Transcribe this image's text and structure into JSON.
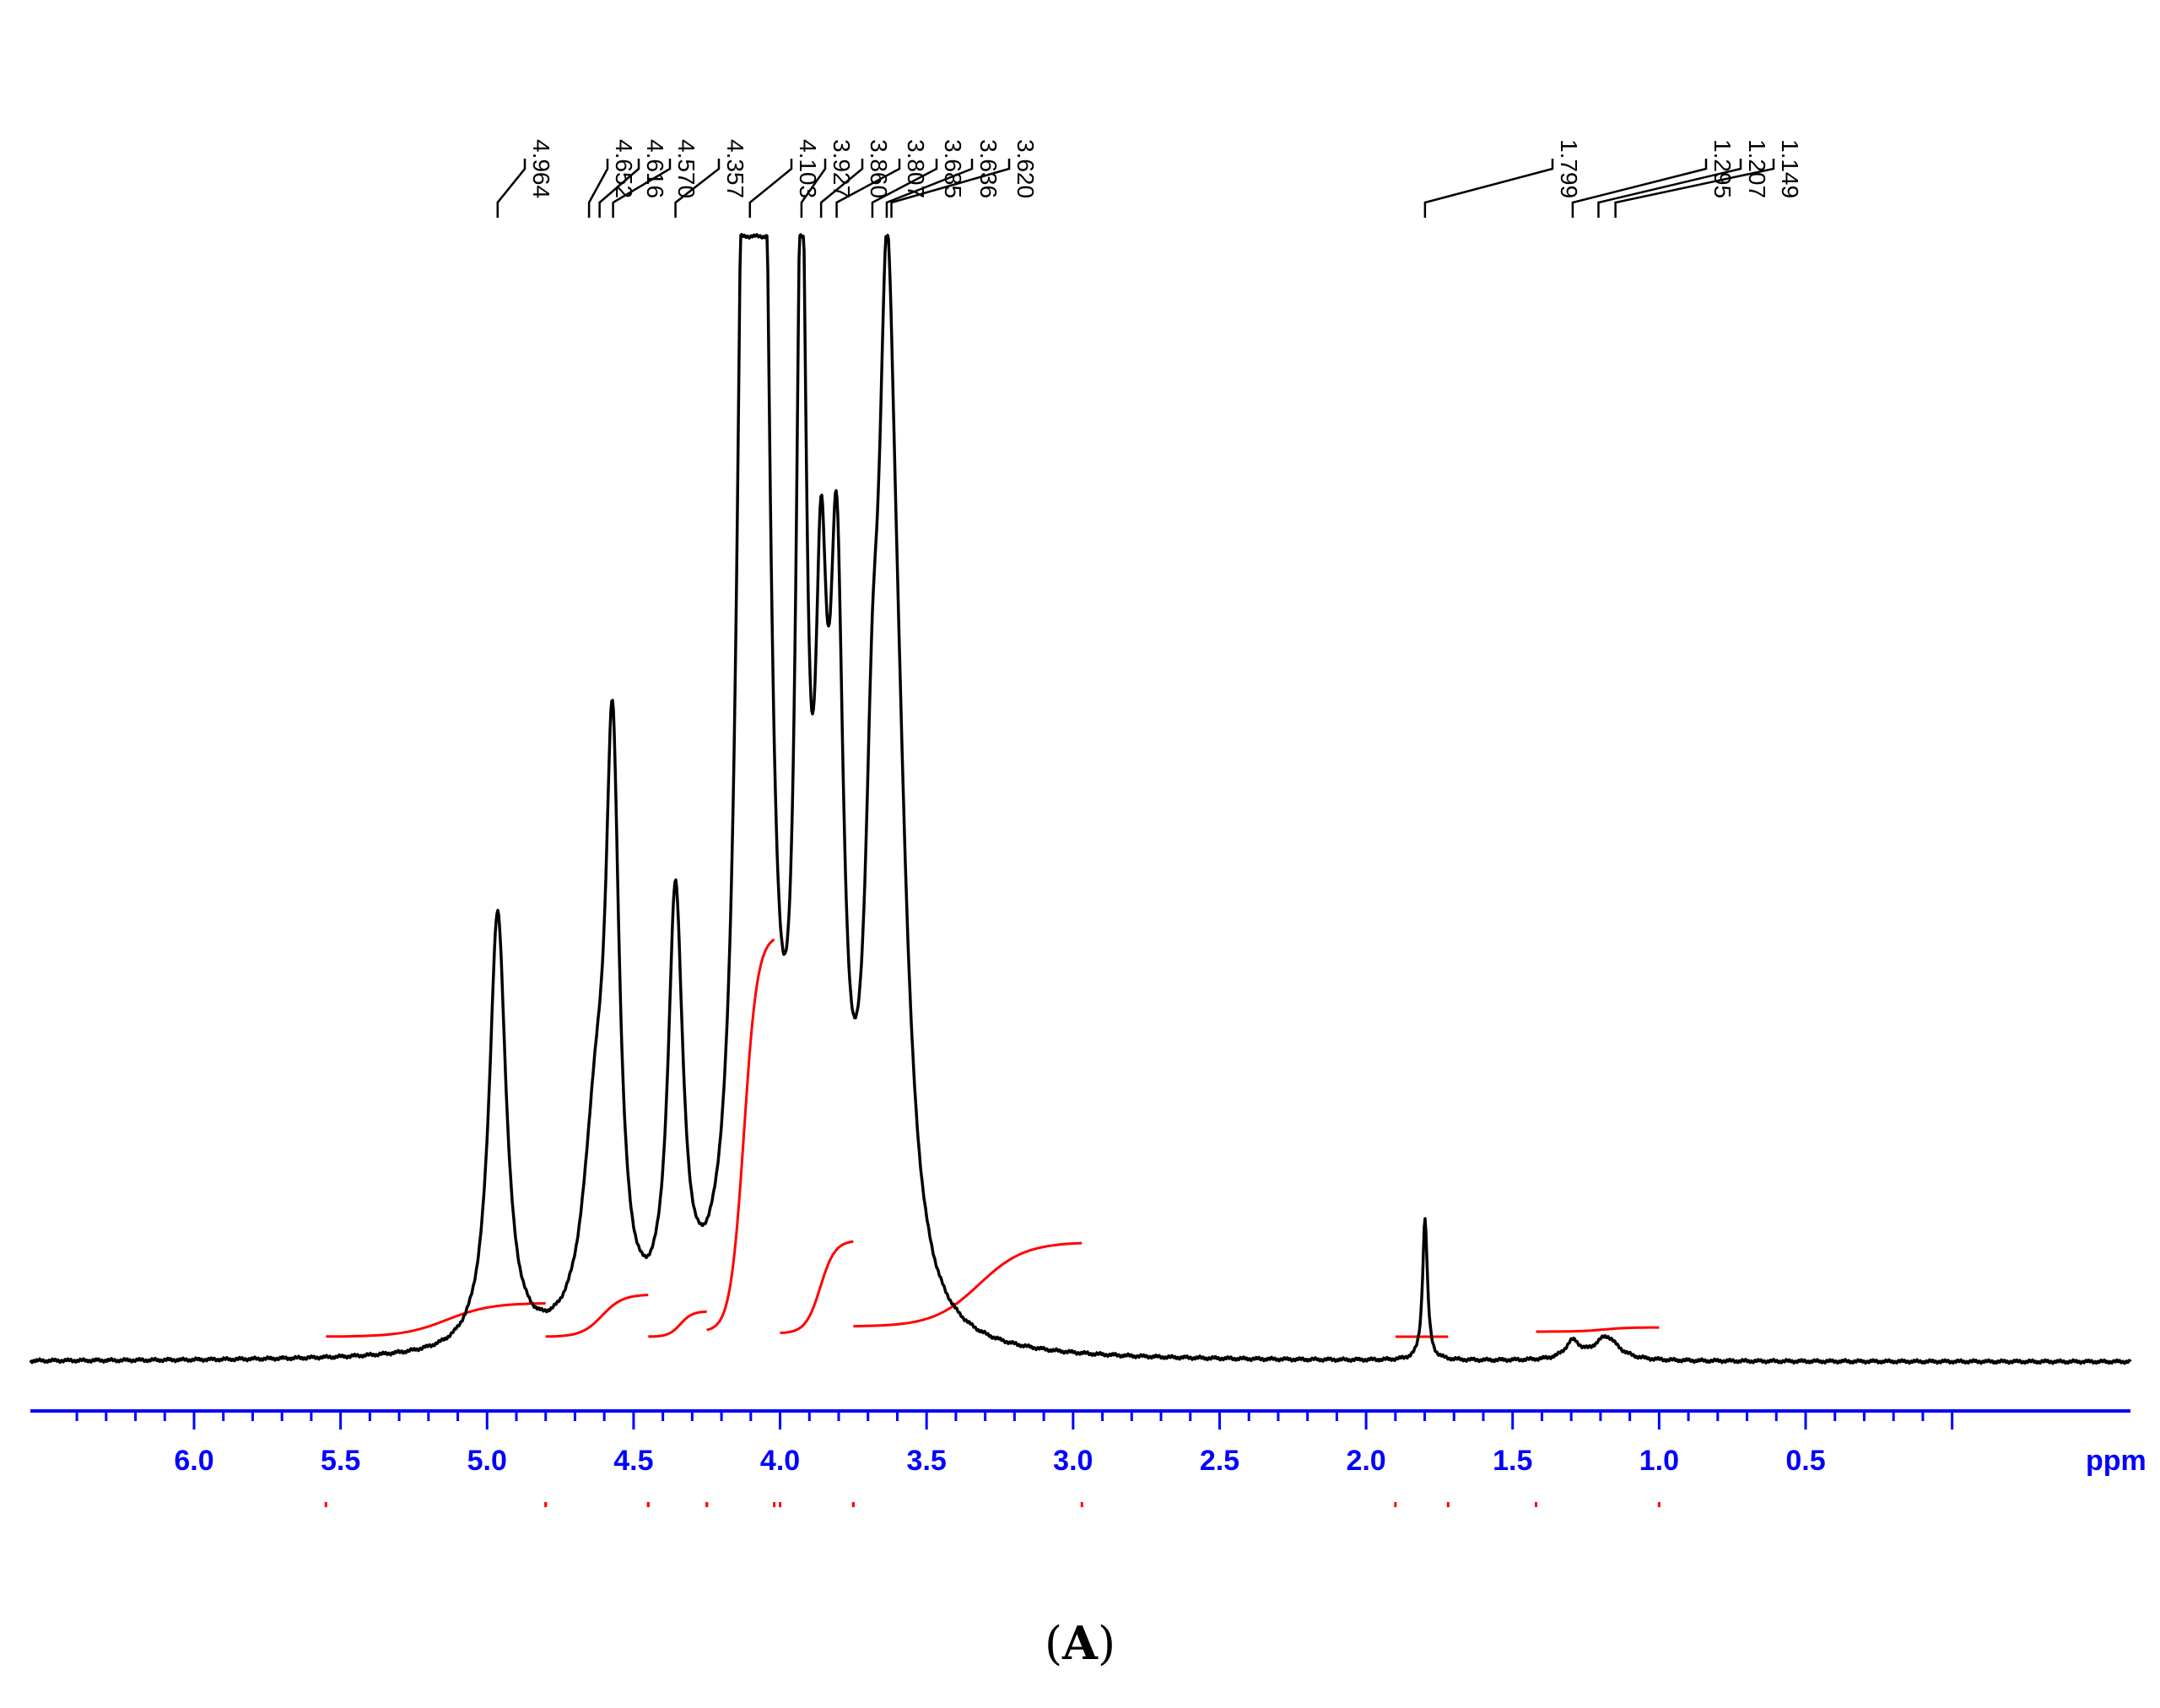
{
  "chart_data": {
    "type": "line",
    "title": "",
    "xlabel": "ppm",
    "ylabel": "",
    "x_reversed": true,
    "xlim": [
      6.5,
      0.0
    ],
    "x_ticks": [
      6.0,
      5.5,
      5.0,
      4.5,
      4.0,
      3.5,
      3.0,
      2.5,
      2.0,
      1.5,
      1.0,
      0.5
    ],
    "x_tick_labels": [
      "6.0",
      "5.5",
      "5.0",
      "4.5",
      "4.0",
      "3.5",
      "3.0",
      "2.5",
      "2.0",
      "1.5",
      "1.0",
      "0.5"
    ],
    "peak_labels": [
      "4.964",
      "4.652",
      "4.616",
      "4.570",
      "4.357",
      "4.103",
      "3.927",
      "3.860",
      "3.807",
      "3.685",
      "3.636",
      "3.620",
      "1.799",
      "1.295",
      "1.207",
      "1.149"
    ],
    "peak_positions": [
      4.964,
      4.652,
      4.616,
      4.57,
      4.357,
      4.103,
      3.927,
      3.86,
      3.807,
      3.685,
      3.636,
      3.62,
      1.799,
      1.295,
      1.207,
      1.149
    ],
    "peaks": [
      {
        "x": 4.964,
        "height": 0.37,
        "width": 0.035
      },
      {
        "x": 4.63,
        "height": 0.16,
        "width": 0.05
      },
      {
        "x": 4.572,
        "height": 0.47,
        "width": 0.028
      },
      {
        "x": 4.357,
        "height": 0.36,
        "width": 0.03
      },
      {
        "x": 4.12,
        "height": 1.0,
        "width": 0.03
      },
      {
        "x": 4.06,
        "height": 1.0,
        "width": 0.03
      },
      {
        "x": 3.927,
        "height": 0.87,
        "width": 0.022
      },
      {
        "x": 3.86,
        "height": 0.46,
        "width": 0.025
      },
      {
        "x": 3.807,
        "height": 0.54,
        "width": 0.028
      },
      {
        "x": 3.685,
        "height": 0.28,
        "width": 0.03
      },
      {
        "x": 3.636,
        "height": 0.65,
        "width": 0.035
      },
      {
        "x": 3.6,
        "height": 0.3,
        "width": 0.05
      },
      {
        "x": 1.799,
        "height": 0.12,
        "width": 0.01
      },
      {
        "x": 1.295,
        "height": 0.015,
        "width": 0.03
      },
      {
        "x": 1.18,
        "height": 0.02,
        "width": 0.05
      }
    ],
    "integrals": [
      {
        "from": 5.55,
        "to": 4.8,
        "rise": 0.04
      },
      {
        "from": 4.8,
        "to": 4.45,
        "rise": 0.05
      },
      {
        "from": 4.45,
        "to": 4.25,
        "rise": 0.03
      },
      {
        "from": 4.25,
        "to": 4.02,
        "rise": 0.47
      },
      {
        "from": 4.0,
        "to": 3.75,
        "rise": 0.11
      },
      {
        "from": 3.75,
        "to": 2.97,
        "rise": 0.1
      },
      {
        "from": 1.9,
        "to": 1.72,
        "rise": 0.0
      },
      {
        "from": 1.42,
        "to": 1.0,
        "rise": 0.005
      }
    ],
    "colors": {
      "spectrum": "#000000",
      "integral": "#ff0000",
      "axis": "#0000ff"
    }
  },
  "caption": {
    "open": "(",
    "letter": "A",
    "close": ")"
  }
}
